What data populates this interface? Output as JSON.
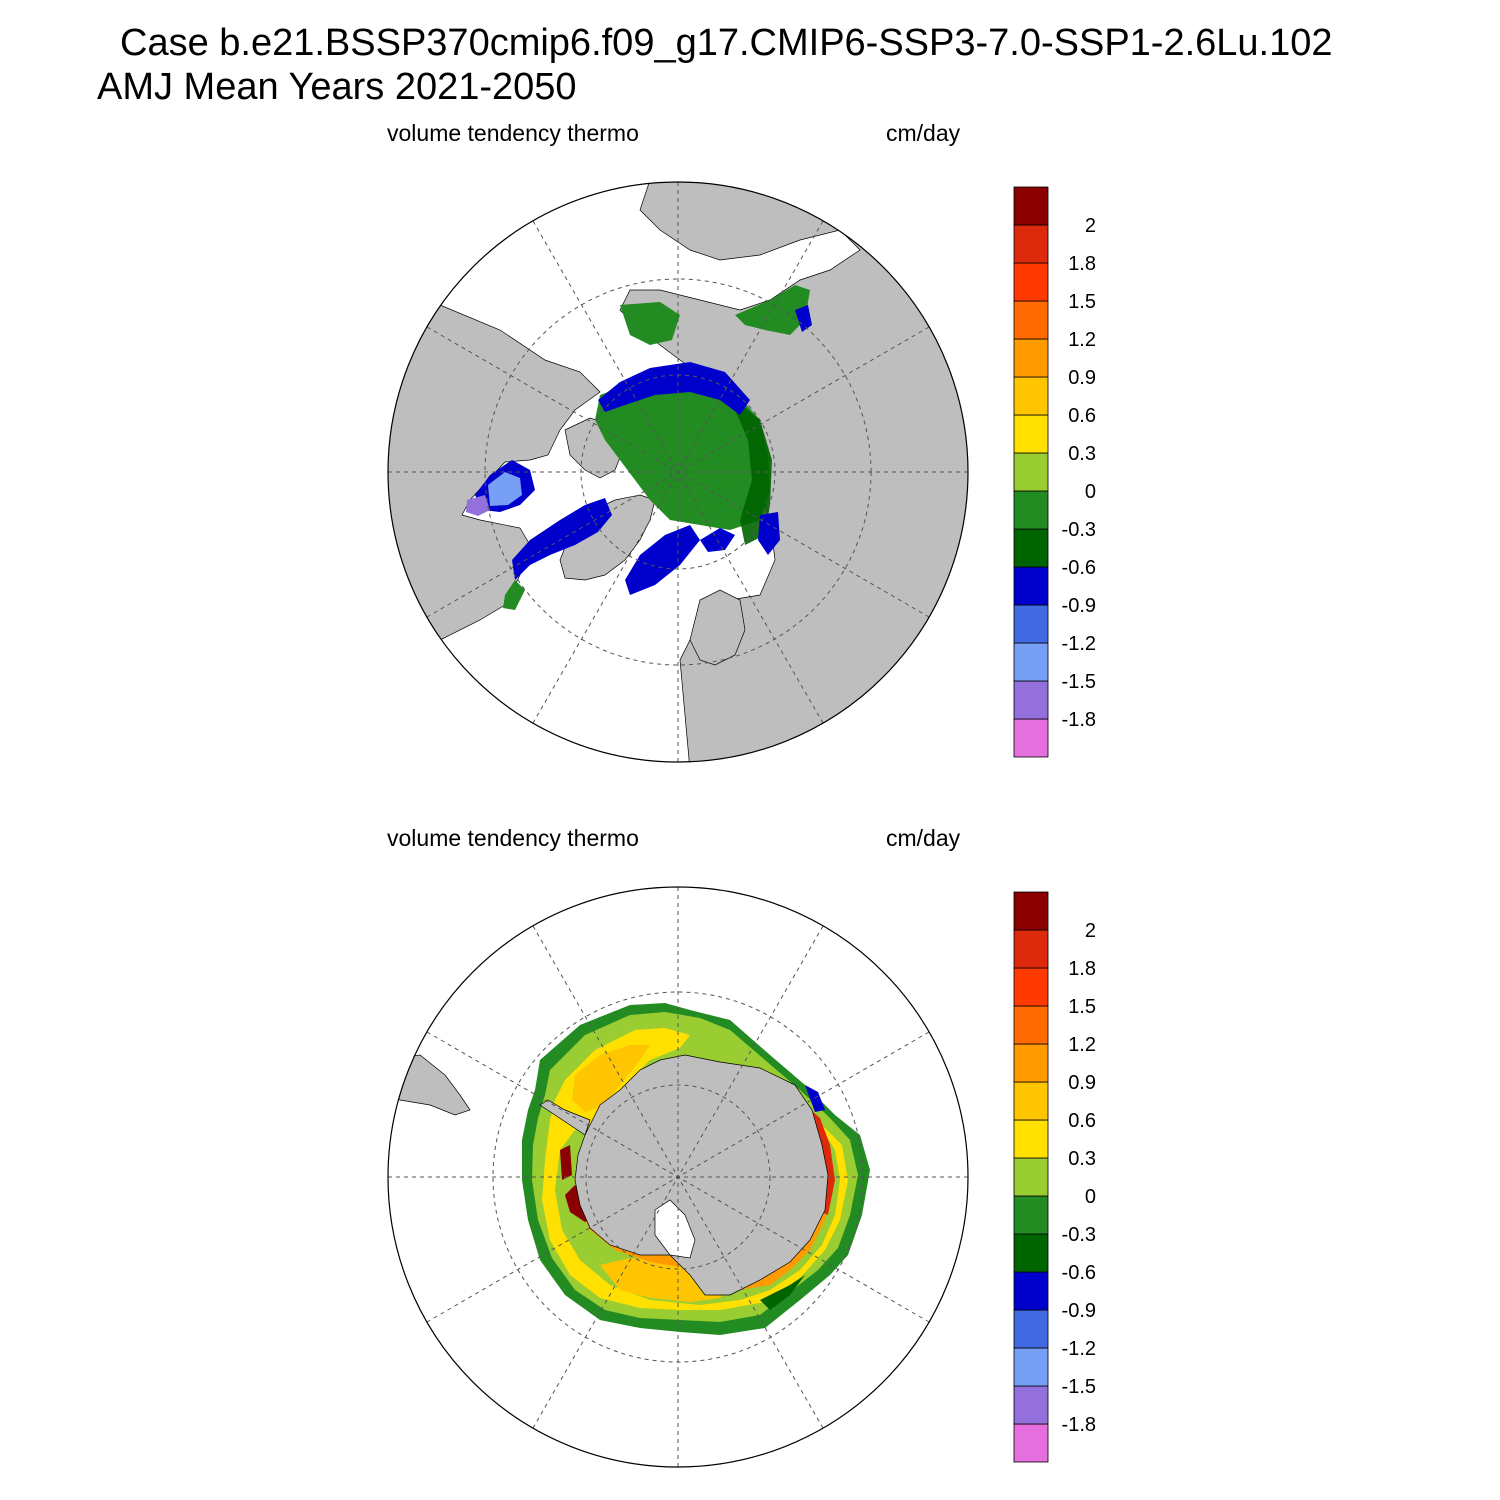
{
  "title": {
    "line1": "Case b.e21.BSSP370cmip6.f09_g17.CMIP6-SSP3-7.0-SSP1-2.6Lu.102",
    "line2": "AMJ Mean   Years 2021-2050"
  },
  "panels": [
    {
      "id": "arctic",
      "variable": "volume tendency thermo",
      "units": "cm/day",
      "hemisphere": "north"
    },
    {
      "id": "antarctic",
      "variable": "volume tendency thermo",
      "units": "cm/day",
      "hemisphere": "south"
    }
  ],
  "colorbar": {
    "colors": [
      "#e66fe0",
      "#9370db",
      "#779ff5",
      "#4169e1",
      "#0000cd",
      "#006400",
      "#228b22",
      "#9acd32",
      "#ffe000",
      "#ffc500",
      "#ff9a00",
      "#ff6b00",
      "#ff3a00",
      "#dd2a0d",
      "#8b0000"
    ],
    "labels": [
      "-1.8",
      "-1.5",
      "-1.2",
      "-0.9",
      "-0.6",
      "-0.3",
      "0",
      "0.3",
      "0.6",
      "0.9",
      "1.2",
      "1.5",
      "1.8",
      "2"
    ]
  },
  "map_colors": {
    "land": "#bebebe",
    "ocean": "#ffffff",
    "grid": "#555555"
  }
}
